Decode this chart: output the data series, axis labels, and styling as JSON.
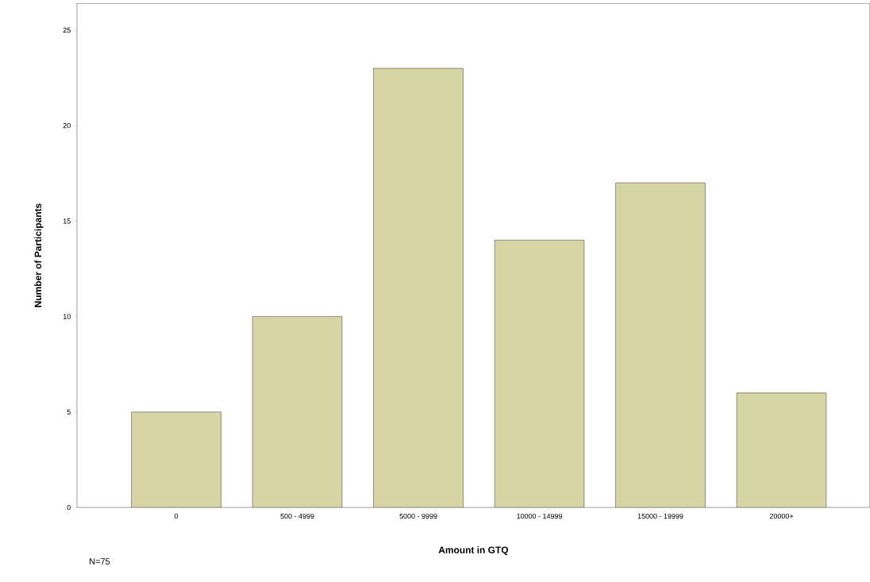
{
  "chart_data": {
    "type": "bar",
    "xlabel": "Amount in GTQ",
    "ylabel": "Number of Participants",
    "categories": [
      "0",
      "500 - 4999",
      "5000 - 9999",
      "10000 - 14999",
      "15000 - 19999",
      "20000+"
    ],
    "values": [
      5,
      10,
      23,
      14,
      17,
      6
    ],
    "color": "#d8d5a5",
    "ylim": [
      0,
      26.4
    ],
    "yticks": [
      0,
      5,
      10,
      15,
      20,
      25
    ],
    "grid": false,
    "annotations": [
      "N=75"
    ]
  }
}
